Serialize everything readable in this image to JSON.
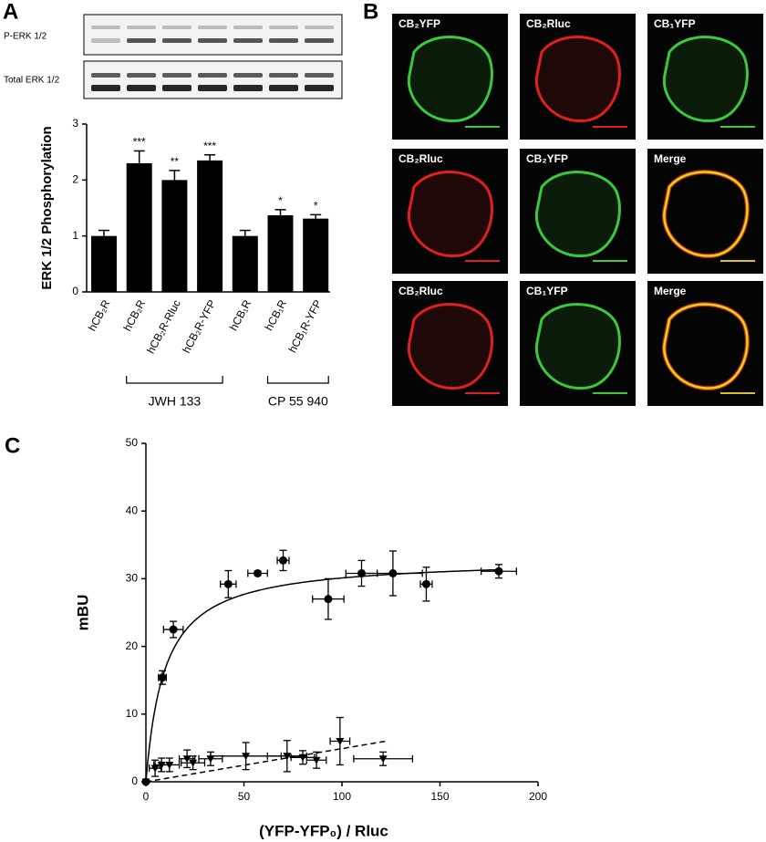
{
  "panel_labels": [
    "A",
    "B",
    "C"
  ],
  "blot_labels": [
    "P-ERK 1/2",
    "Total ERK 1/2"
  ],
  "micrographs": [
    "CB₂YFP",
    "CB₂Rluc",
    "CB₁YFP",
    "CB₂Rluc",
    "CB₂YFP",
    "Merge",
    "CB₂Rluc",
    "CB₁YFP",
    "Merge"
  ],
  "chart_data": [
    {
      "type": "bar",
      "ylabel": "ERK 1/2 Phosphorylation",
      "categories": [
        "hCB₂R",
        "hCB₂R",
        "hCB₂R-Rluc",
        "hCB₂R-YFP",
        "hCB₁R",
        "hCB₁R",
        "hCB₁R-YFP"
      ],
      "values": [
        1.0,
        2.3,
        2.0,
        2.35,
        1.0,
        1.37,
        1.31
      ],
      "errors": [
        0.1,
        0.22,
        0.17,
        0.1,
        0.1,
        0.1,
        0.07
      ],
      "significance": [
        null,
        "***",
        "**",
        "***",
        null,
        "*",
        "*"
      ],
      "group_labels": [
        "JWH 133",
        "CP 55 940"
      ],
      "color": "#000000",
      "ylim": [
        0,
        3
      ],
      "yticks": [
        0,
        1,
        2,
        3
      ]
    },
    {
      "type": "scatter",
      "xlabel": "(YFP-YFP₀) / Rluc",
      "ylabel": "mBU",
      "xlim": [
        0,
        200
      ],
      "xticks": [
        0,
        50,
        100,
        150,
        200
      ],
      "ylim": [
        0,
        50
      ],
      "yticks": [
        0,
        10,
        20,
        30,
        40,
        50
      ],
      "series": [
        {
          "marker": "circle",
          "color": "#000000",
          "x": [
            0,
            8.4,
            14,
            42,
            57,
            70,
            93,
            110,
            126,
            143,
            180
          ],
          "values": [
            0,
            15.4,
            22.5,
            29.2,
            30.8,
            32.7,
            27,
            30.8,
            30.8,
            29.2,
            31.1
          ],
          "x_err": [
            0,
            2,
            5,
            4,
            5,
            3,
            8,
            8,
            15,
            3,
            9
          ],
          "y_err": [
            0,
            1,
            1.2,
            2,
            0.3,
            1.5,
            3,
            1.9,
            3.3,
            2.5,
            1
          ],
          "fit": {
            "kind": "hyperbolic",
            "bmax": 33,
            "kd": 9.6,
            "xmax": 180,
            "dashed": false
          }
        },
        {
          "marker": "triangle",
          "color": "#000000",
          "x": [
            0,
            4.7,
            8,
            12,
            21,
            24,
            33,
            51,
            72,
            80,
            87,
            99,
            121
          ],
          "values": [
            0,
            2,
            2.5,
            2.5,
            3.4,
            2.8,
            3.4,
            3.8,
            3.8,
            3.6,
            3.2,
            6,
            3.4
          ],
          "x_err": [
            0,
            3,
            4,
            5,
            4,
            6,
            6,
            18,
            10,
            6,
            5,
            5,
            15
          ],
          "y_err": [
            0,
            1.2,
            1,
            1,
            1.3,
            1,
            1,
            2,
            2.3,
            1,
            1.2,
            3.5,
            1
          ],
          "fit": {
            "kind": "linear",
            "slope": 0.049,
            "xmax": 122,
            "dashed": true
          }
        }
      ]
    }
  ]
}
